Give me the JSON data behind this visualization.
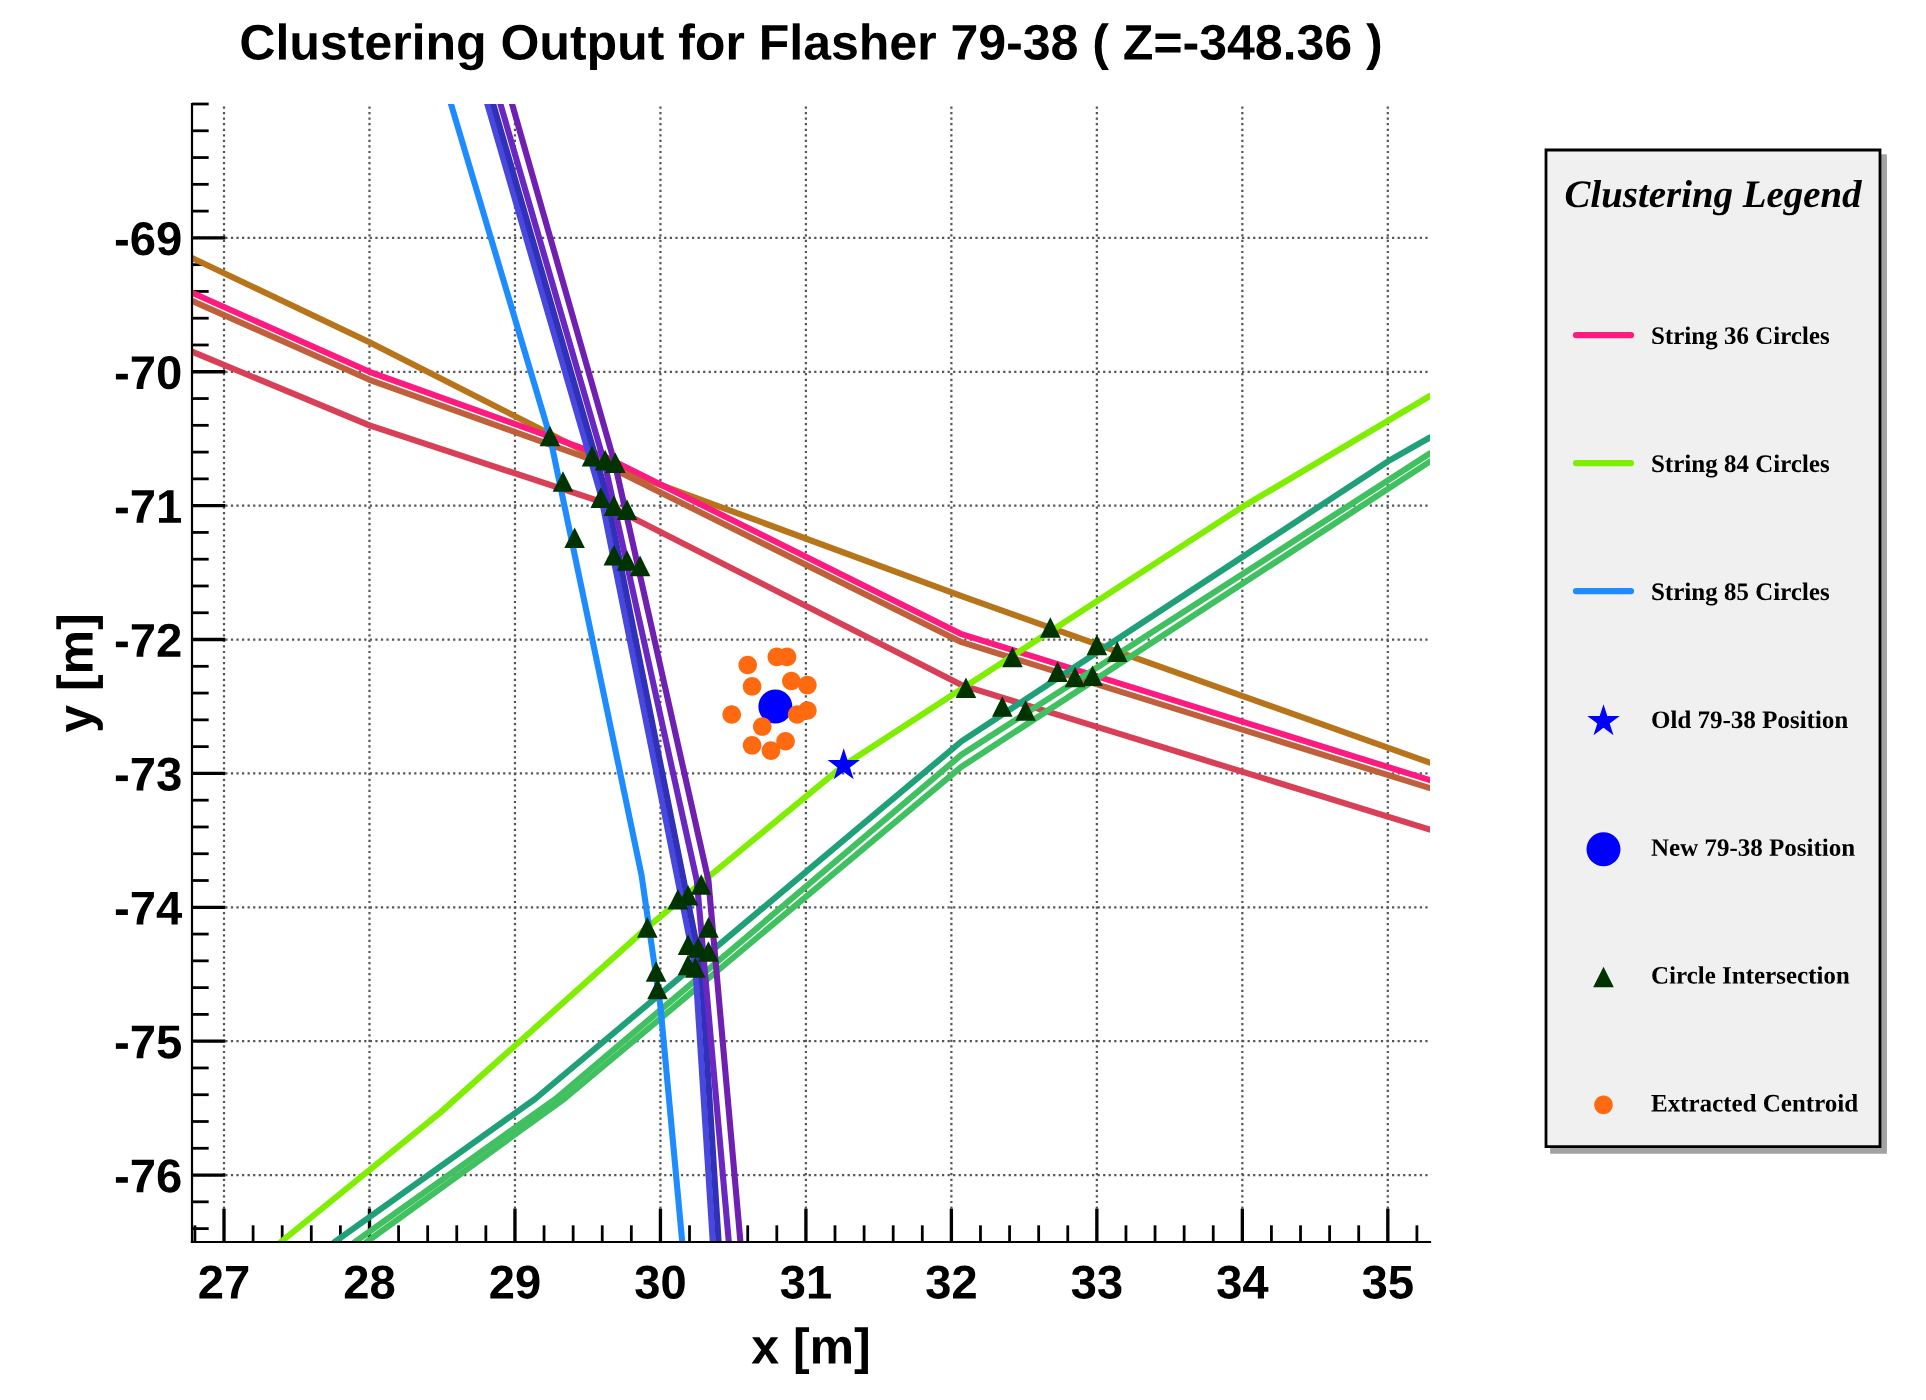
{
  "chart_data": {
    "type": "line",
    "title": "Clustering Output for Flasher 79-38 ( Z=-348.36 )",
    "xlabel": "x [m]",
    "ylabel": "y [m]",
    "legend_title": "Clustering Legend",
    "xlim": [
      26.78,
      35.29
    ],
    "ylim": [
      -76.5,
      -68.0
    ],
    "xticks": [
      27,
      28,
      29,
      30,
      31,
      32,
      33,
      34,
      35
    ],
    "yticks": [
      -76,
      -75,
      -74,
      -73,
      -72,
      -71,
      -70,
      -69
    ],
    "grid": true,
    "legend": "right",
    "line_style": "solid",
    "series": [
      {
        "color": "#b8741a",
        "x": [
          26.78,
          28.0,
          29.74,
          32.08,
          35.29
        ],
        "values": [
          -69.15,
          -69.78,
          -70.74,
          -71.68,
          -72.92
        ]
      },
      {
        "color": "#c0603a",
        "x": [
          26.78,
          28.0,
          29.59,
          32.07,
          35.29
        ],
        "values": [
          -69.47,
          -70.06,
          -70.68,
          -72.02,
          -73.11
        ]
      },
      {
        "name": "String 36 Circles",
        "color": "#ff1a80",
        "x": [
          26.78,
          28.0,
          29.59,
          32.07,
          35.29
        ],
        "values": [
          -69.41,
          -70.0,
          -70.62,
          -71.96,
          -73.05
        ]
      },
      {
        "color": "#d84058",
        "x": [
          26.78,
          28.0,
          29.59,
          32.07,
          35.29
        ],
        "values": [
          -69.85,
          -70.4,
          -70.97,
          -72.34,
          -73.42
        ]
      },
      {
        "color": "#20a078",
        "x": [
          27.76,
          29.14,
          32.07,
          35.0,
          35.29
        ],
        "values": [
          -76.5,
          -75.43,
          -72.76,
          -70.67,
          -70.49
        ]
      },
      {
        "color": "#40c060",
        "x": [
          27.9,
          29.28,
          32.07,
          35.29
        ],
        "values": [
          -76.5,
          -75.43,
          -72.86,
          -70.61
        ]
      },
      {
        "color": "#40c060",
        "x": [
          27.98,
          29.34,
          32.07,
          35.29
        ],
        "values": [
          -76.5,
          -75.43,
          -72.95,
          -70.67
        ]
      },
      {
        "name": "String 84 Circles",
        "color": "#80ee00",
        "x": [
          27.39,
          28.49,
          29.91,
          31.26,
          34.0,
          35.29
        ],
        "values": [
          -76.5,
          -75.53,
          -74.15,
          -72.94,
          -71.01,
          -70.18
        ]
      },
      {
        "color": "#4848e0",
        "x": [
          28.81,
          29.59,
          30.24,
          30.36
        ],
        "values": [
          -68.0,
          -70.92,
          -74.45,
          -76.5
        ]
      },
      {
        "color": "#3030b8",
        "x": [
          28.85,
          29.63,
          30.28,
          30.4
        ],
        "values": [
          -68.0,
          -70.92,
          -74.45,
          -76.5
        ]
      },
      {
        "color": "#6a28c0",
        "x": [
          28.9,
          29.62,
          30.25,
          30.47
        ],
        "values": [
          -68.0,
          -70.7,
          -73.8,
          -76.5
        ]
      },
      {
        "color": "#7020b0",
        "x": [
          28.98,
          29.69,
          30.33,
          30.55
        ],
        "values": [
          -68.0,
          -70.7,
          -73.8,
          -76.5
        ]
      },
      {
        "name": "String 85 Circles",
        "color": "#1e8cff",
        "x": [
          28.56,
          29.24,
          29.87,
          30.0,
          30.15
        ],
        "values": [
          -68.0,
          -70.48,
          -73.76,
          -74.74,
          -76.5
        ]
      },
      {
        "name": "Old 79-38 Position",
        "type": "scatter",
        "marker": "star",
        "color": "#0000ff",
        "x": [
          31.26
        ],
        "values": [
          -72.94
        ]
      },
      {
        "name": "New 79-38 Position",
        "type": "scatter",
        "marker": "circle",
        "color": "#0000ff",
        "x": [
          30.79
        ],
        "values": [
          -72.5
        ]
      },
      {
        "name": "Circle Intersection",
        "type": "scatter",
        "marker": "triangle",
        "color": "#003300",
        "x": [
          29.24,
          29.53,
          29.62,
          29.69,
          29.33,
          29.59,
          29.68,
          29.77,
          29.41,
          29.68,
          29.77,
          29.86,
          29.91,
          29.97,
          29.98,
          30.12,
          30.19,
          30.28,
          30.33,
          30.19,
          30.26,
          30.33,
          30.19,
          30.24,
          32.68,
          32.42,
          33.0,
          33.14,
          32.73,
          32.85,
          32.1,
          32.51,
          32.35,
          32.97
        ],
        "values": [
          -70.48,
          -70.63,
          -70.66,
          -70.68,
          -70.82,
          -70.94,
          -71.0,
          -71.03,
          -71.24,
          -71.37,
          -71.41,
          -71.45,
          -74.15,
          -74.48,
          -74.61,
          -73.94,
          -73.91,
          -73.83,
          -74.15,
          -74.28,
          -74.3,
          -74.33,
          -74.43,
          -74.45,
          -71.91,
          -72.13,
          -72.04,
          -72.09,
          -72.24,
          -72.28,
          -72.36,
          -72.53,
          -72.5,
          -72.27
        ]
      },
      {
        "name": "Extracted Centroid",
        "type": "scatter",
        "marker": "circle",
        "color": "#ff6a10",
        "x": [
          30.6,
          30.8,
          30.87,
          30.63,
          31.01,
          30.49,
          30.7,
          30.63,
          30.86,
          30.94,
          31.01,
          30.9,
          30.76
        ],
        "values": [
          -72.19,
          -72.13,
          -72.13,
          -72.35,
          -72.34,
          -72.56,
          -72.65,
          -72.79,
          -72.76,
          -72.56,
          -72.53,
          -72.31,
          -72.83
        ]
      }
    ]
  }
}
